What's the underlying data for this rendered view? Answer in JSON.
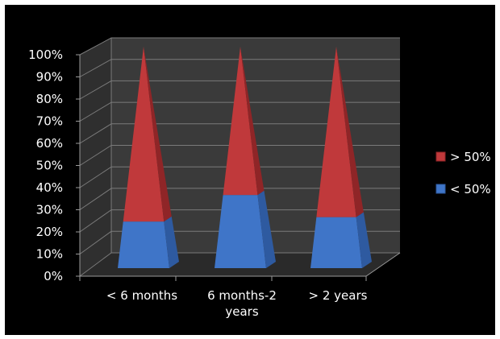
{
  "chart_data": {
    "type": "bar",
    "subtype": "stacked-100-percent-3d-pyramid",
    "categories": [
      "< 6 months",
      "6 months-2 years",
      "> 2 years"
    ],
    "category_label_lines": [
      [
        "< 6 months"
      ],
      [
        "6 months-2",
        "years"
      ],
      [
        "> 2 years"
      ]
    ],
    "series": [
      {
        "name": "< 50%",
        "values": [
          21,
          33,
          23
        ],
        "color": "#3f75c8",
        "color_side": "#2e5aa0"
      },
      {
        "name": "> 50%",
        "values": [
          79,
          67,
          77
        ],
        "color": "#c0393b",
        "color_side": "#8f2527"
      }
    ],
    "yticks": [
      "0%",
      "10%",
      "20%",
      "30%",
      "40%",
      "50%",
      "60%",
      "70%",
      "80%",
      "90%",
      "100%"
    ],
    "ylim": [
      0,
      100
    ],
    "y_unit": "%",
    "grid": true,
    "legend_position": "right",
    "legend_order": [
      "> 50%",
      "< 50%"
    ],
    "background_color": "#000000",
    "wall_color": "#3a3a3a",
    "floor_color": "#2a2a2a",
    "text_color": "#ffffff"
  }
}
